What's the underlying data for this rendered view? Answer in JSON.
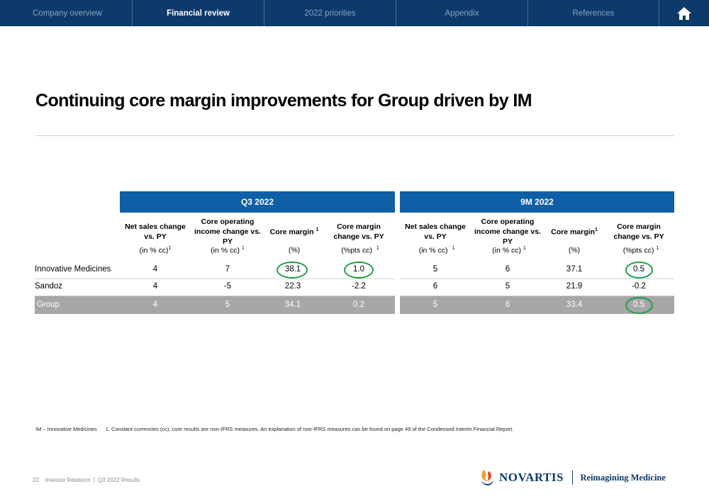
{
  "nav": {
    "tabs": [
      {
        "label": "Company overview"
      },
      {
        "label": "Financial review"
      },
      {
        "label": "2022 priorities"
      },
      {
        "label": "Appendix"
      },
      {
        "label": "References"
      }
    ],
    "home_icon": "home-icon"
  },
  "title": "Continuing core margin improvements for Group driven by IM",
  "table": {
    "periods": [
      "Q3 2022",
      "9M 2022"
    ],
    "headers": {
      "net_sales": "Net sales change vs. PY",
      "core_op_income": "Core operating income change vs. PY",
      "core_margin": "Core margin",
      "core_margin_change": "Core margin change vs. PY"
    },
    "units": {
      "in_pct_cc": "(in % cc)",
      "pct": "(%)",
      "pct_pts_cc": "(%pts cc)"
    },
    "footnote_marker": "1",
    "rows": [
      {
        "label": "Innovative Medicines",
        "q3": [
          "4",
          "7",
          "38.1",
          "1.0"
        ],
        "nine_m": [
          "5",
          "6",
          "37.1",
          "0.5"
        ]
      },
      {
        "label": "Sandoz",
        "q3": [
          "4",
          "-5",
          "22.3",
          "-2.2"
        ],
        "nine_m": [
          "6",
          "5",
          "21.9",
          "-0.2"
        ]
      },
      {
        "label": "Group",
        "q3": [
          "4",
          "5",
          "34.1",
          "0.2"
        ],
        "nine_m": [
          "5",
          "6",
          "33.4",
          "0.5"
        ]
      }
    ],
    "highlight_color": "#1f9e4a",
    "header_color": "#0f5fa6",
    "group_row_color": "#a7a6a8"
  },
  "footnote": {
    "abbrev": "IM – Innovative Medicines",
    "note": "1. Constant currencies (cc), core results are non-IFRS measures. An explanation of non-IFRS measures can be found on page 49 of the Condensed Interim Financial Report."
  },
  "footer": {
    "page": "22",
    "section": "Investor Relations",
    "doc": "Q3 2022 Results"
  },
  "brand": {
    "name": "NOVARTIS",
    "tagline": "Reimagining Medicine",
    "colors": {
      "navy": "#0b3a6b",
      "orange": "#f0a030"
    }
  }
}
